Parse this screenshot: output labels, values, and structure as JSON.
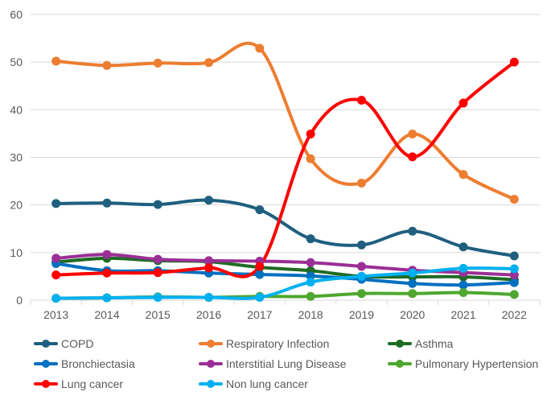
{
  "chart_data": {
    "type": "line",
    "title": "",
    "xlabel": "",
    "ylabel": "",
    "x": [
      "2013",
      "2014",
      "2015",
      "2016",
      "2017",
      "2018",
      "2019",
      "2020",
      "2021",
      "2022"
    ],
    "ylim": [
      0,
      60
    ],
    "yticks": [
      0,
      10,
      20,
      30,
      40,
      50,
      60
    ],
    "grid": true,
    "smooth": true,
    "legend_position": "bottom",
    "series": [
      {
        "name": "COPD",
        "color": "#1F5F7F",
        "values": [
          20.3,
          20.4,
          20.1,
          21.0,
          19.0,
          12.9,
          11.6,
          14.5,
          11.2,
          9.3
        ]
      },
      {
        "name": "Respiratory Infection",
        "color": "#ED7D31",
        "values": [
          50.2,
          49.3,
          49.8,
          49.9,
          52.9,
          29.7,
          24.6,
          34.9,
          26.4,
          21.2
        ]
      },
      {
        "name": "Asthma",
        "color": "#1E6B24",
        "values": [
          8.0,
          8.8,
          8.3,
          8.1,
          6.9,
          6.2,
          5.0,
          4.9,
          4.9,
          4.3
        ]
      },
      {
        "name": "Bronchiectasia",
        "color": "#0070C0",
        "values": [
          7.7,
          6.2,
          6.2,
          5.7,
          5.4,
          5.1,
          4.4,
          3.5,
          3.2,
          3.7
        ]
      },
      {
        "name": "Interstitial Lung Disease",
        "color": "#9B2F96",
        "values": [
          8.8,
          9.6,
          8.6,
          8.3,
          8.2,
          7.9,
          7.1,
          6.3,
          5.8,
          5.3
        ]
      },
      {
        "name": "Pulmonary Hypertension",
        "color": "#4EA72E",
        "values": [
          0.4,
          0.5,
          0.7,
          0.6,
          0.8,
          0.8,
          1.4,
          1.4,
          1.6,
          1.2
        ]
      },
      {
        "name": "Lung cancer",
        "color": "#FF0000",
        "values": [
          5.3,
          5.7,
          5.8,
          6.8,
          7.1,
          34.9,
          42.0,
          30.1,
          41.4,
          50.0
        ]
      },
      {
        "name": "Non lung cancer",
        "color": "#00B0F0",
        "values": [
          0.4,
          0.5,
          0.6,
          0.6,
          0.6,
          3.8,
          5.0,
          5.7,
          6.7,
          6.6
        ]
      }
    ]
  }
}
